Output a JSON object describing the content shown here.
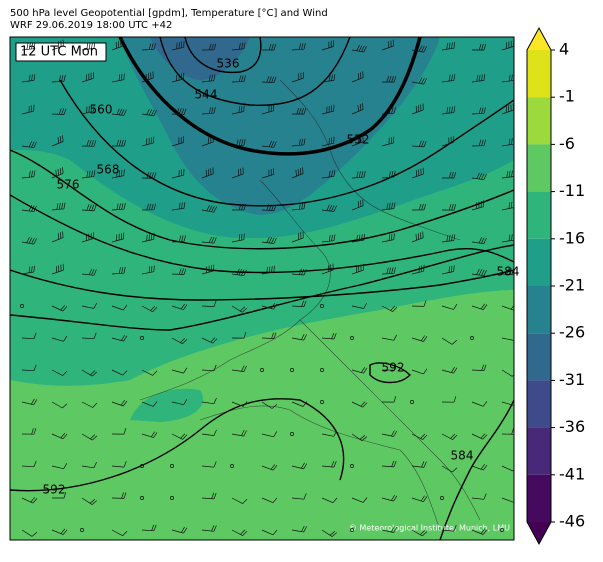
{
  "header": {
    "title": "500 hPa level Geopotential [gpdm], Temperature [°C] and Wind",
    "subtitle": "WRF 29.06.2019 18:00 UTC +42"
  },
  "map": {
    "time_label": "12 UTC Mon",
    "contour_labels": [
      536,
      544,
      552,
      560,
      568,
      576,
      584,
      584,
      592,
      592
    ],
    "credit": "© Meteorological Institute, Munich, LMU"
  },
  "colorbar": {
    "ticks": [
      4,
      -1,
      -6,
      -11,
      -16,
      -21,
      -26,
      -31,
      -36,
      -41,
      -46
    ],
    "colors": [
      "#dde318",
      "#9bd93c",
      "#5ec962",
      "#2fb47c",
      "#1f9e89",
      "#26828e",
      "#31688e",
      "#3e4a89",
      "#482878",
      "#450a5e"
    ],
    "over_color": "#fde725",
    "under_color": "#440154"
  }
}
